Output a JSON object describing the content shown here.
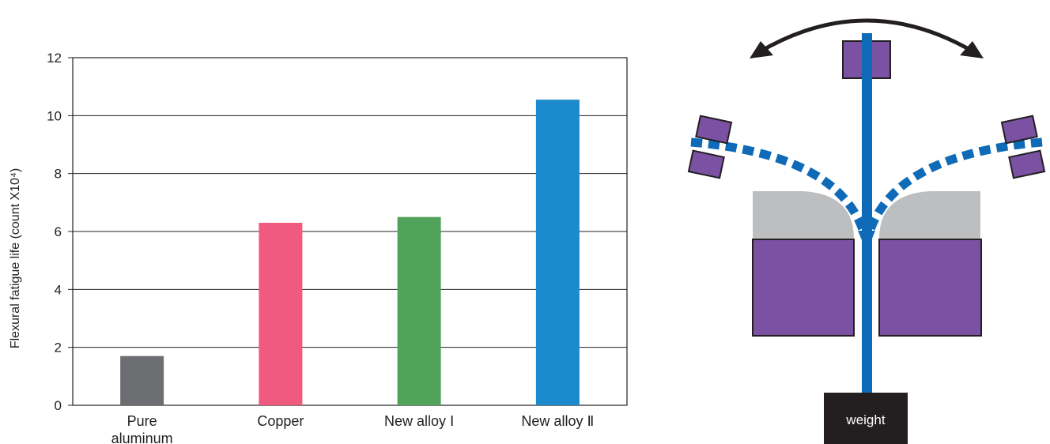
{
  "chart_data": {
    "type": "bar",
    "categories": [
      "Pure aluminum",
      "Copper",
      "New alloy Ⅰ",
      "New alloy Ⅱ"
    ],
    "values": [
      1.7,
      6.3,
      6.5,
      10.55
    ],
    "colors": [
      "#6d6e71",
      "#ef5a7e",
      "#52a35a",
      "#1b8bcd"
    ],
    "ylabel": "Flexural fatigue life (count X10⁴)",
    "ylim": [
      0,
      12
    ],
    "yticks": [
      0,
      2,
      4,
      6,
      8,
      10,
      12
    ],
    "grid": true
  },
  "diagram": {
    "weight_label": "weight",
    "colors": {
      "wire": "#0f6bb8",
      "clamp": "#7b52a3",
      "guide": "#bcbec0",
      "weight": "#231f20",
      "arrow": "#231f20"
    }
  }
}
